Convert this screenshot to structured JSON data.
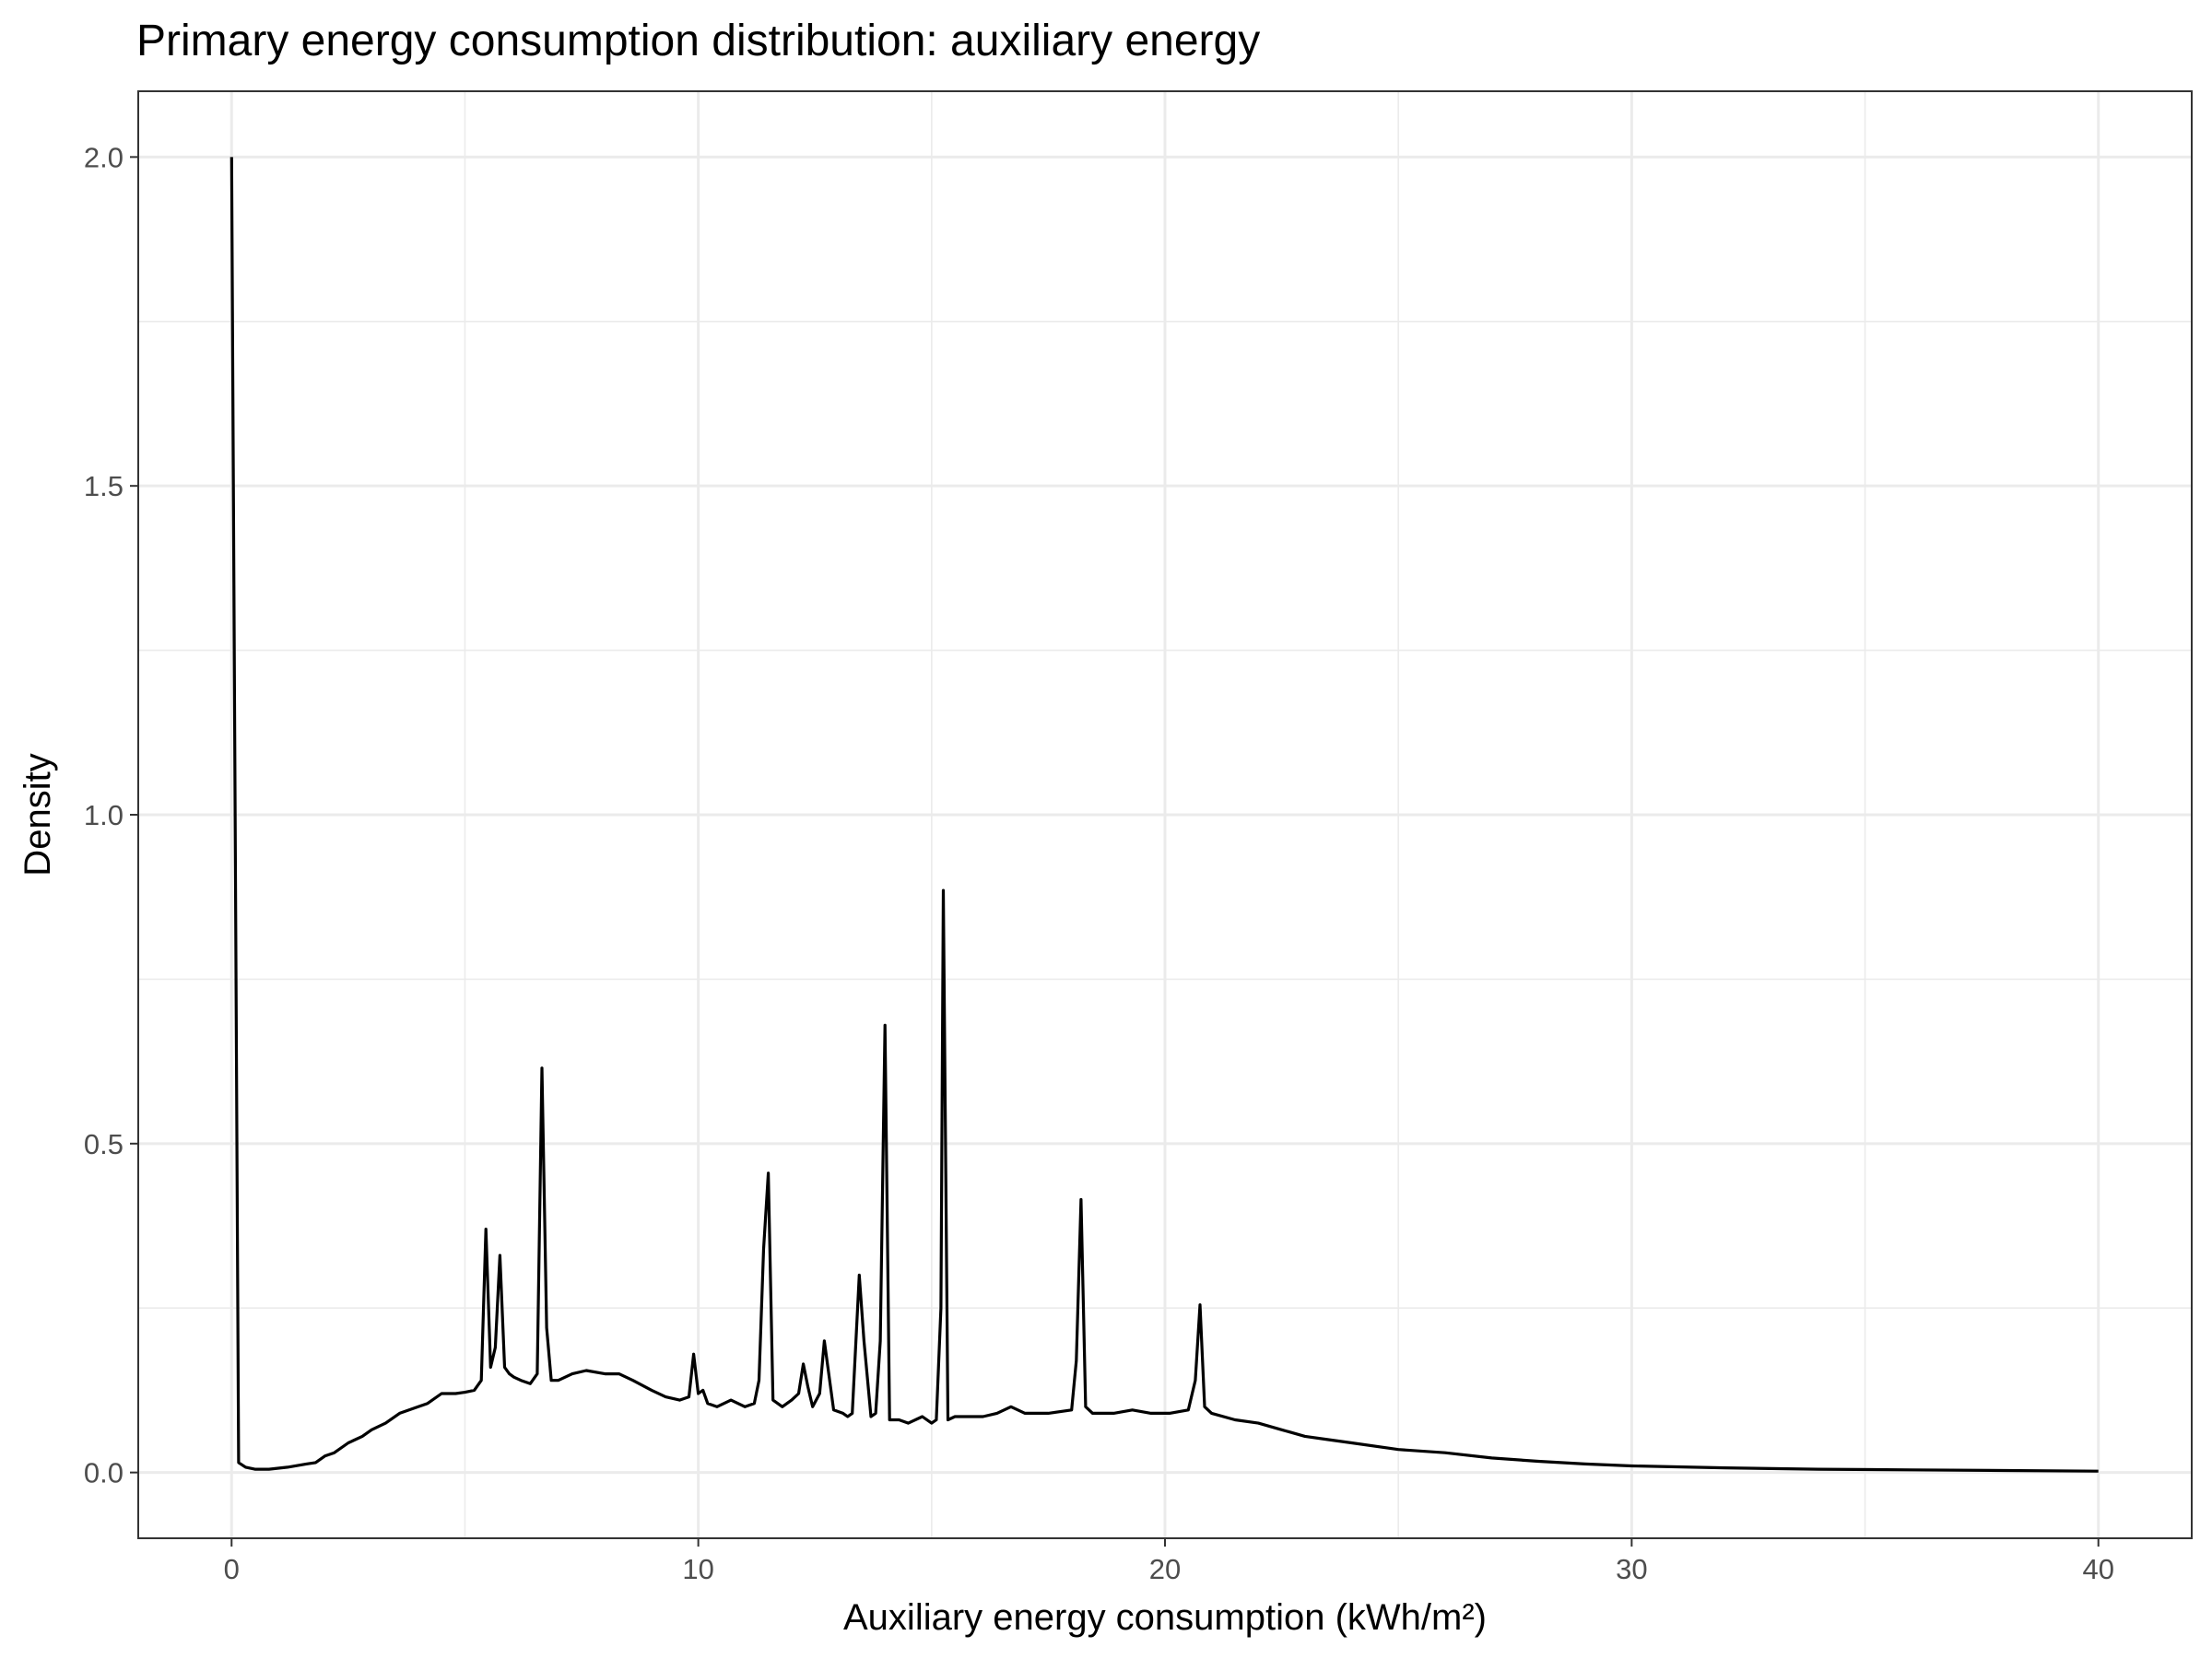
{
  "chart_data": {
    "type": "line",
    "title": "Primary energy consumption distribution: auxiliary energy",
    "xlabel": "Auxiliary energy consumption (kWh/m²)",
    "ylabel": "Density",
    "xlim": [
      -2,
      42
    ],
    "ylim": [
      -0.1,
      2.1
    ],
    "x_ticks": [
      0,
      10,
      20,
      30,
      40
    ],
    "x_tick_labels": [
      "0",
      "10",
      "20",
      "30",
      "40"
    ],
    "y_ticks": [
      0.0,
      0.5,
      1.0,
      1.5,
      2.0
    ],
    "y_tick_labels": [
      "0.0",
      "0.5",
      "1.0",
      "1.5",
      "2.0"
    ],
    "grid": true,
    "line_color": "#000000",
    "series": [
      {
        "x": [
          0,
          0.15,
          0.3,
          0.5,
          0.8,
          1.2,
          1.6,
          1.8,
          2.0,
          2.2,
          2.5,
          2.8,
          3.0,
          3.3,
          3.6,
          4.0,
          4.2,
          4.5,
          4.8,
          5.0,
          5.2,
          5.35,
          5.45,
          5.55,
          5.65,
          5.75,
          5.85,
          5.95,
          6.05,
          6.2,
          6.4,
          6.55,
          6.65,
          6.75,
          6.85,
          7.0,
          7.3,
          7.6,
          8.0,
          8.3,
          8.6,
          9.0,
          9.3,
          9.6,
          9.8,
          9.9,
          10.0,
          10.1,
          10.2,
          10.4,
          10.7,
          11.0,
          11.2,
          11.3,
          11.4,
          11.5,
          11.6,
          11.8,
          12.0,
          12.15,
          12.25,
          12.35,
          12.45,
          12.6,
          12.7,
          12.9,
          13.1,
          13.2,
          13.3,
          13.45,
          13.55,
          13.7,
          13.8,
          13.9,
          14.0,
          14.1,
          14.3,
          14.5,
          14.8,
          15.0,
          15.1,
          15.2,
          15.25,
          15.35,
          15.5,
          15.8,
          16.1,
          16.4,
          16.7,
          17.0,
          17.5,
          18.0,
          18.1,
          18.2,
          18.3,
          18.45,
          18.6,
          18.9,
          19.3,
          19.7,
          20.1,
          20.5,
          20.65,
          20.75,
          20.85,
          21.0,
          21.5,
          22.0,
          22.5,
          23.0,
          23.5,
          24.0,
          25.0,
          26.0,
          27.0,
          28.0,
          29.0,
          30.0,
          32.0,
          34.0,
          36.0,
          38.0,
          40.0
        ],
        "y": [
          2.0,
          0.015,
          0.008,
          0.005,
          0.005,
          0.008,
          0.013,
          0.015,
          0.025,
          0.03,
          0.045,
          0.055,
          0.065,
          0.075,
          0.09,
          0.1,
          0.105,
          0.12,
          0.12,
          0.122,
          0.125,
          0.14,
          0.37,
          0.16,
          0.19,
          0.33,
          0.16,
          0.15,
          0.145,
          0.14,
          0.135,
          0.15,
          0.615,
          0.22,
          0.14,
          0.14,
          0.15,
          0.155,
          0.15,
          0.15,
          0.14,
          0.125,
          0.115,
          0.11,
          0.115,
          0.18,
          0.12,
          0.125,
          0.105,
          0.1,
          0.11,
          0.1,
          0.105,
          0.14,
          0.34,
          0.455,
          0.11,
          0.1,
          0.11,
          0.12,
          0.165,
          0.13,
          0.1,
          0.12,
          0.2,
          0.095,
          0.09,
          0.085,
          0.09,
          0.3,
          0.2,
          0.085,
          0.09,
          0.2,
          0.68,
          0.08,
          0.08,
          0.075,
          0.085,
          0.075,
          0.08,
          0.25,
          0.885,
          0.08,
          0.085,
          0.085,
          0.085,
          0.09,
          0.1,
          0.09,
          0.09,
          0.095,
          0.17,
          0.415,
          0.1,
          0.09,
          0.09,
          0.09,
          0.095,
          0.09,
          0.09,
          0.095,
          0.14,
          0.255,
          0.1,
          0.09,
          0.08,
          0.075,
          0.065,
          0.055,
          0.05,
          0.045,
          0.035,
          0.03,
          0.022,
          0.017,
          0.013,
          0.01,
          0.007,
          0.005,
          0.004,
          0.003,
          0.002
        ]
      }
    ]
  }
}
